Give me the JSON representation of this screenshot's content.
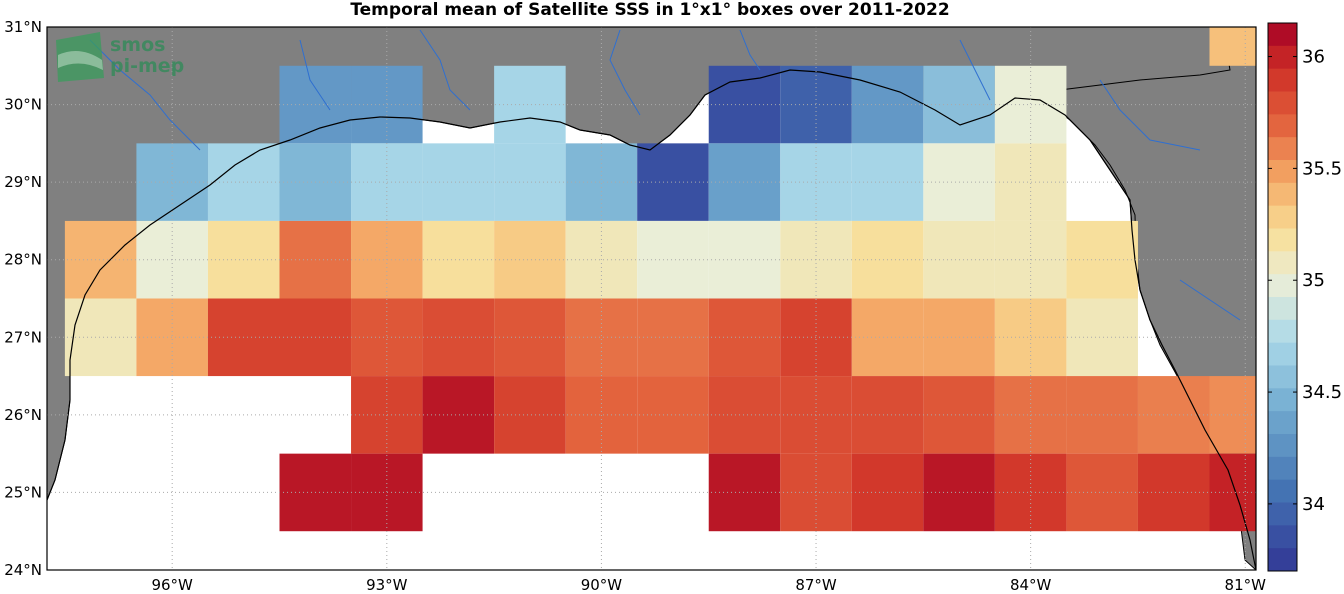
{
  "title": "Temporal mean of Satellite SSS in 1°x1° boxes over 2011-2022",
  "logo": {
    "line1": "smos",
    "line2": "pi-mep"
  },
  "axes": {
    "lon_min": -97.75,
    "lon_max": -80.85,
    "lat_min": 24,
    "lat_max": 31,
    "lat_labels": [
      "31°N",
      "30°N",
      "29°N",
      "28°N",
      "27°N",
      "26°N",
      "25°N",
      "24°N"
    ],
    "lon_labels": [
      "96°W",
      "93°W",
      "90°W",
      "87°W",
      "84°W",
      "81°W"
    ]
  },
  "colorbar": {
    "min": 33.7,
    "max": 36.15,
    "ticks": [
      "36",
      "35.5",
      "35",
      "34.5",
      "34"
    ]
  },
  "colors": {
    "land": "#808080",
    "no_data": "#ffffff",
    "river": "#2f6fd0",
    "grid": "#b0b0b0"
  },
  "chart_data": {
    "type": "heatmap",
    "title": "Temporal mean of Satellite SSS in 1°x1° boxes over 2011-2022",
    "x_label": "",
    "y_label": "",
    "value_range": [
      33.7,
      36.15
    ],
    "rows": [
      {
        "lat": "29.5–30.5",
        "cells": [
          {
            "lon": -97,
            "v": null
          },
          {
            "lon": -96,
            "v": null
          },
          {
            "lon": -95,
            "v": null
          },
          {
            "lon": -94,
            "v": 34.3
          },
          {
            "lon": -93,
            "v": 34.3
          },
          {
            "lon": -92,
            "v": null
          },
          {
            "lon": -91,
            "v": 34.7
          },
          {
            "lon": -90,
            "v": null
          },
          {
            "lon": -89,
            "v": null
          },
          {
            "lon": -88,
            "v": 33.85
          },
          {
            "lon": -87,
            "v": 33.95
          },
          {
            "lon": -86,
            "v": 34.3
          },
          {
            "lon": -85,
            "v": 34.55
          },
          {
            "lon": -84,
            "v": 35.0
          },
          {
            "lon": -83,
            "v": null
          },
          {
            "lon": -82,
            "v": null
          },
          {
            "lon": -81,
            "v": null
          }
        ]
      },
      {
        "lat": "28.5–29.5",
        "cells": [
          {
            "lon": -97,
            "v": null
          },
          {
            "lon": -96,
            "v": 34.5
          },
          {
            "lon": -95,
            "v": 34.7
          },
          {
            "lon": -94,
            "v": 34.5
          },
          {
            "lon": -93,
            "v": 34.7
          },
          {
            "lon": -92,
            "v": 34.7
          },
          {
            "lon": -91,
            "v": 34.7
          },
          {
            "lon": -90,
            "v": 34.5
          },
          {
            "lon": -89,
            "v": 33.85
          },
          {
            "lon": -88,
            "v": 34.35
          },
          {
            "lon": -87,
            "v": 34.7
          },
          {
            "lon": -86,
            "v": 34.7
          },
          {
            "lon": -85,
            "v": 35.0
          },
          {
            "lon": -84,
            "v": 35.1
          },
          {
            "lon": -83,
            "v": null
          },
          {
            "lon": -82,
            "v": null
          },
          {
            "lon": -81,
            "v": null
          }
        ]
      },
      {
        "lat": "27.5–28.5",
        "cells": [
          {
            "lon": -97,
            "v": 35.4
          },
          {
            "lon": -96,
            "v": 35.0
          },
          {
            "lon": -95,
            "v": 35.2
          },
          {
            "lon": -94,
            "v": 35.65
          },
          {
            "lon": -93,
            "v": 35.45
          },
          {
            "lon": -92,
            "v": 35.2
          },
          {
            "lon": -91,
            "v": 35.3
          },
          {
            "lon": -90,
            "v": 35.1
          },
          {
            "lon": -89,
            "v": 35.0
          },
          {
            "lon": -88,
            "v": 35.0
          },
          {
            "lon": -87,
            "v": 35.1
          },
          {
            "lon": -86,
            "v": 35.2
          },
          {
            "lon": -85,
            "v": 35.1
          },
          {
            "lon": -84,
            "v": 35.1
          },
          {
            "lon": -83,
            "v": 35.2
          },
          {
            "lon": -82,
            "v": null
          },
          {
            "lon": -81,
            "v": null
          }
        ]
      },
      {
        "lat": "26.5–27.5",
        "cells": [
          {
            "lon": -97,
            "v": 35.1
          },
          {
            "lon": -96,
            "v": 35.45
          },
          {
            "lon": -95,
            "v": 35.85
          },
          {
            "lon": -94,
            "v": 35.85
          },
          {
            "lon": -93,
            "v": 35.75
          },
          {
            "lon": -92,
            "v": 35.8
          },
          {
            "lon": -91,
            "v": 35.75
          },
          {
            "lon": -90,
            "v": 35.65
          },
          {
            "lon": -89,
            "v": 35.65
          },
          {
            "lon": -88,
            "v": 35.75
          },
          {
            "lon": -87,
            "v": 35.85
          },
          {
            "lon": -86,
            "v": 35.45
          },
          {
            "lon": -85,
            "v": 35.45
          },
          {
            "lon": -84,
            "v": 35.3
          },
          {
            "lon": -83,
            "v": 35.1
          },
          {
            "lon": -82,
            "v": null
          },
          {
            "lon": -81,
            "v": null
          }
        ]
      },
      {
        "lat": "25.5–26.5",
        "cells": [
          {
            "lon": -97,
            "v": null
          },
          {
            "lon": -96,
            "v": null
          },
          {
            "lon": -95,
            "v": null
          },
          {
            "lon": -94,
            "v": null
          },
          {
            "lon": -93,
            "v": 35.85
          },
          {
            "lon": -92,
            "v": 36.05
          },
          {
            "lon": -91,
            "v": 35.85
          },
          {
            "lon": -90,
            "v": 35.7
          },
          {
            "lon": -89,
            "v": 35.7
          },
          {
            "lon": -88,
            "v": 35.8
          },
          {
            "lon": -87,
            "v": 35.8
          },
          {
            "lon": -86,
            "v": 35.8
          },
          {
            "lon": -85,
            "v": 35.75
          },
          {
            "lon": -84,
            "v": 35.65
          },
          {
            "lon": -83,
            "v": 35.65
          },
          {
            "lon": -82,
            "v": 35.6
          },
          {
            "lon": -81,
            "v": 35.55
          }
        ]
      },
      {
        "lat": "24.5–25.5",
        "cells": [
          {
            "lon": -97,
            "v": null
          },
          {
            "lon": -96,
            "v": null
          },
          {
            "lon": -95,
            "v": null
          },
          {
            "lon": -94,
            "v": 36.05
          },
          {
            "lon": -93,
            "v": 36.05
          },
          {
            "lon": -92,
            "v": null
          },
          {
            "lon": -91,
            "v": null
          },
          {
            "lon": -90,
            "v": null
          },
          {
            "lon": -89,
            "v": null
          },
          {
            "lon": -88,
            "v": 36.05
          },
          {
            "lon": -87,
            "v": 35.8
          },
          {
            "lon": -86,
            "v": 35.9
          },
          {
            "lon": -85,
            "v": 36.05
          },
          {
            "lon": -84,
            "v": 35.9
          },
          {
            "lon": -83,
            "v": 35.75
          },
          {
            "lon": -82,
            "v": 35.9
          },
          {
            "lon": -81,
            "v": 36.0
          }
        ]
      },
      {
        "lat": "30.5–31",
        "cells": [
          {
            "lon": -81,
            "v": 35.35
          }
        ]
      }
    ]
  }
}
